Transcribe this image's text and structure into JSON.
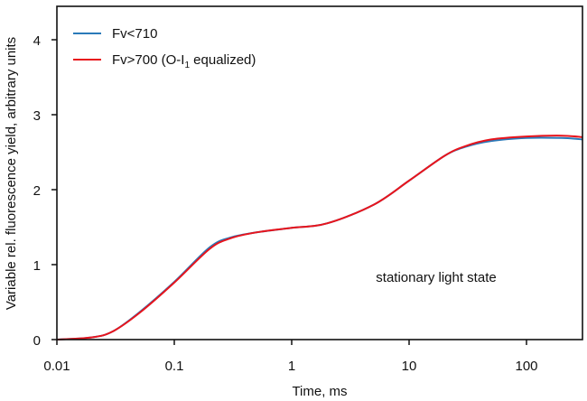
{
  "chart_data": {
    "type": "line",
    "title": "",
    "xlabel": "Time, ms",
    "ylabel": "Variable rel. fluorescence yield, arbitrary units",
    "xscale": "log",
    "xlim": [
      0.01,
      300
    ],
    "ylim": [
      0,
      4.43
    ],
    "xticks": [
      0.01,
      0.1,
      1,
      10,
      100
    ],
    "xtick_labels": [
      "0.01",
      "0.1",
      "1",
      "10",
      "100"
    ],
    "yticks": [
      0,
      1,
      2,
      3,
      4
    ],
    "ytick_labels": [
      "0",
      "1",
      "2",
      "3",
      "4"
    ],
    "grid": false,
    "legend_position": "top-left",
    "annotation": "stationary light state",
    "x": [
      0.01,
      0.02,
      0.03,
      0.05,
      0.1,
      0.2,
      0.3,
      0.5,
      1,
      2,
      5,
      10,
      20,
      30,
      50,
      100,
      200,
      300
    ],
    "series": [
      {
        "name": "Fv<710",
        "color": "#2a7ab9",
        "values": [
          0,
          0.03,
          0.11,
          0.36,
          0.77,
          1.23,
          1.36,
          1.43,
          1.49,
          1.55,
          1.8,
          2.12,
          2.45,
          2.57,
          2.65,
          2.69,
          2.69,
          2.67
        ]
      },
      {
        "name": "Fv>700 (O-I",
        "subscript": "1",
        "name_suffix": " equalized)",
        "color": "#e8141c",
        "values": [
          0,
          0.03,
          0.11,
          0.35,
          0.76,
          1.21,
          1.35,
          1.43,
          1.49,
          1.55,
          1.8,
          2.12,
          2.45,
          2.58,
          2.67,
          2.71,
          2.72,
          2.7
        ]
      }
    ]
  }
}
